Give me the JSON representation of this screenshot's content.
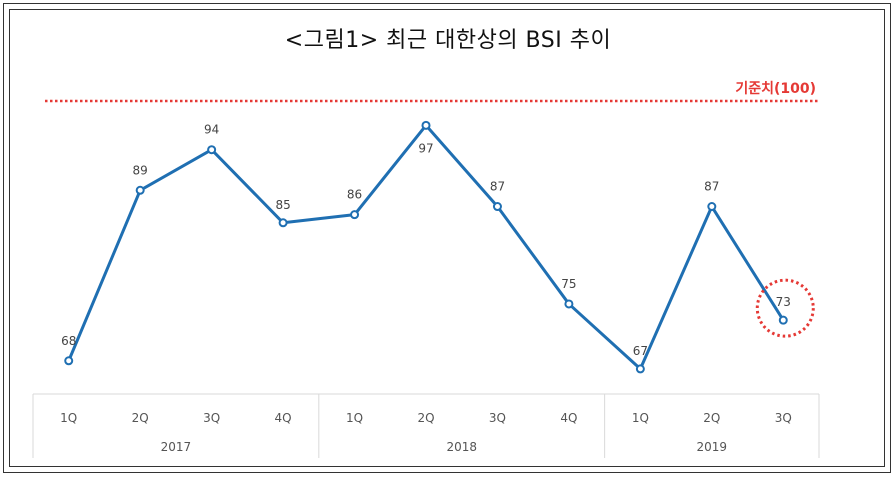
{
  "title": "<그림1> 최근 대한상의 BSI 추이",
  "reference_label": "기준치(100)",
  "colors": {
    "line": "#1f6fb2",
    "reference": "#e53935",
    "highlight": "#e53935",
    "axis_text": "#555555",
    "grid": "#d9d9d9"
  },
  "chart_data": {
    "type": "line",
    "title": "<그림1> 최근 대한상의 BSI 추이",
    "x": [
      "2017 1Q",
      "2017 2Q",
      "2017 3Q",
      "2017 4Q",
      "2018 1Q",
      "2018 2Q",
      "2018 3Q",
      "2018 4Q",
      "2019 1Q",
      "2019 2Q",
      "2019 3Q"
    ],
    "quarter_labels": [
      "1Q",
      "2Q",
      "3Q",
      "4Q",
      "1Q",
      "2Q",
      "3Q",
      "4Q",
      "1Q",
      "2Q",
      "3Q"
    ],
    "years": [
      {
        "label": "2017",
        "count": 4
      },
      {
        "label": "2018",
        "count": 4
      },
      {
        "label": "2019",
        "count": 3
      }
    ],
    "series": [
      {
        "values": [
          68,
          89,
          94,
          85,
          86,
          97,
          87,
          75,
          67,
          87,
          73
        ]
      }
    ],
    "reference_line": 100,
    "highlight_index": 10,
    "ylim": [
      66,
      100
    ],
    "grid": false
  }
}
